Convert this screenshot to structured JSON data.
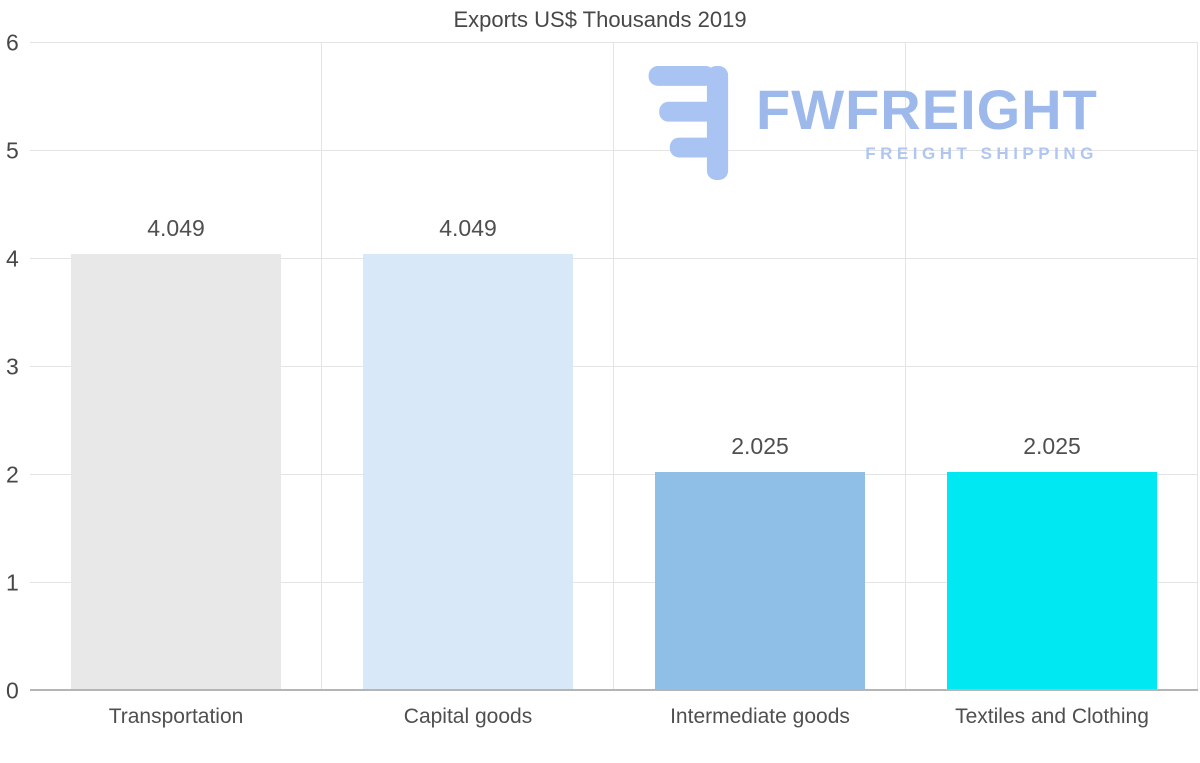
{
  "title": "Exports US$ Thousands 2019",
  "watermark": {
    "name": "FWFREIGHT",
    "tagline": "FREIGHT SHIPPING"
  },
  "colors": {
    "grid": "#e4e4e4",
    "axis": "#b5b5b5",
    "title_text": "#474747",
    "tick_text": "#474747",
    "label_text": "#4f4f4f",
    "logo_mark": "#a9c4f2",
    "logo_text": "#9db9ec",
    "logo_tagline": "#b0c6f0"
  },
  "chart_data": {
    "type": "bar",
    "title": "Exports US$ Thousands 2019",
    "categories": [
      "Transportation",
      "Capital goods",
      "Intermediate goods",
      "Textiles and Clothing"
    ],
    "values": [
      4.049,
      4.049,
      2.025,
      2.025
    ],
    "value_labels": [
      "4.049",
      "4.049",
      "2.025",
      "2.025"
    ],
    "bar_colors": [
      "#e8e8e8",
      "#d9e8f8",
      "#8fbfe6",
      "#00e8f2"
    ],
    "xlabel": "",
    "ylabel": "",
    "ylim": [
      0,
      6
    ],
    "ytick_step": 1,
    "grid": true,
    "legend": false
  }
}
